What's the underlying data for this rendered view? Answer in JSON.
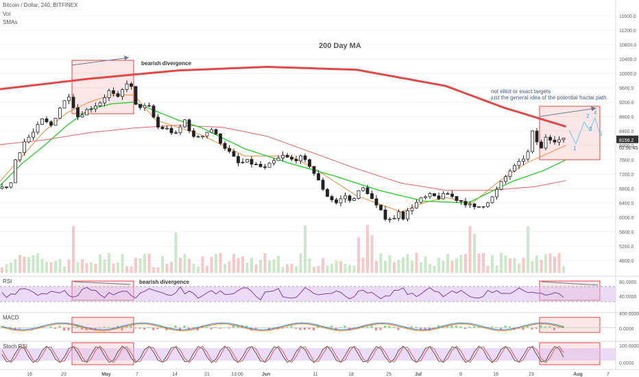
{
  "header": {
    "symbol_line": "Bitcoin / Dollar, 240, BITFINEX",
    "vol_label": "Vol",
    "smas_label": "SMAs"
  },
  "colors": {
    "up": "#ffffff",
    "down": "#222222",
    "ma200": "#e24848",
    "ma_green": "#33cc33",
    "ma_orange": "#f08c3a",
    "ma_red_thin": "#e06666",
    "rsi": "#7b3fa0",
    "stoch_k": "#555555",
    "stoch_d": "#d06060",
    "macd": "#3a7fd0",
    "signal": "#e07a20",
    "band": "#d9b8ee",
    "box_stroke": "#d44",
    "box_fill": "#f6c9c9",
    "projection": "#8fd3e8",
    "arrow": "#6a7a90"
  },
  "chart_data": {
    "type": "candlestick",
    "title": "Bitcoin / Dollar, 240, BITFINEX",
    "y_ticks": [
      "11600.0",
      "11200.0",
      "10800.0",
      "10400.0",
      "10000.0",
      "9600.0",
      "9200.0",
      "8800.0",
      "8400.0",
      "8000.0",
      "7600.0",
      "7200.0",
      "6800.0",
      "6400.0",
      "6000.0",
      "5600.0",
      "5200.0",
      "4800.0"
    ],
    "ylim": [
      4400,
      11800
    ],
    "x_ticks": [
      "16",
      "23",
      "May",
      "7",
      "14",
      "21",
      "13:00",
      "Jun",
      "11",
      "18",
      "25",
      "Jul",
      "9",
      "16",
      "23",
      "Aug",
      "7"
    ],
    "price_path": [
      [
        0,
        6800
      ],
      [
        2,
        6950
      ],
      [
        3,
        7600
      ],
      [
        5,
        8100
      ],
      [
        7,
        8350
      ],
      [
        9,
        8700
      ],
      [
        11,
        8550
      ],
      [
        13,
        9050
      ],
      [
        15,
        9400
      ],
      [
        17,
        8800
      ],
      [
        18,
        8900
      ],
      [
        20,
        9050
      ],
      [
        22,
        9200
      ],
      [
        24,
        9500
      ],
      [
        26,
        9300
      ],
      [
        28,
        9750
      ],
      [
        29,
        9600
      ],
      [
        30,
        9100
      ],
      [
        33,
        9050
      ],
      [
        35,
        8500
      ],
      [
        37,
        8450
      ],
      [
        39,
        8300
      ],
      [
        41,
        8700
      ],
      [
        43,
        8200
      ],
      [
        45,
        8300
      ],
      [
        47,
        8450
      ],
      [
        49,
        8100
      ],
      [
        51,
        7800
      ],
      [
        53,
        7500
      ],
      [
        55,
        7550
      ],
      [
        57,
        7450
      ],
      [
        59,
        7350
      ],
      [
        61,
        7550
      ],
      [
        63,
        7700
      ],
      [
        65,
        7600
      ],
      [
        67,
        7650
      ],
      [
        69,
        7450
      ],
      [
        71,
        7000
      ],
      [
        73,
        6600
      ],
      [
        75,
        6400
      ],
      [
        77,
        6600
      ],
      [
        78,
        6450
      ],
      [
        80,
        6700
      ],
      [
        81,
        6800
      ],
      [
        82,
        6700
      ],
      [
        84,
        6300
      ],
      [
        86,
        6000
      ],
      [
        88,
        5950
      ],
      [
        89,
        6200
      ],
      [
        90,
        6000
      ],
      [
        92,
        6300
      ],
      [
        94,
        6500
      ],
      [
        96,
        6600
      ],
      [
        98,
        6550
      ],
      [
        100,
        6650
      ],
      [
        102,
        6500
      ],
      [
        104,
        6400
      ],
      [
        106,
        6250
      ],
      [
        108,
        6350
      ],
      [
        110,
        6550
      ],
      [
        112,
        6950
      ],
      [
        114,
        7300
      ],
      [
        116,
        7500
      ],
      [
        118,
        7800
      ],
      [
        119,
        8350
      ],
      [
        120,
        8100
      ],
      [
        121,
        7900
      ],
      [
        122,
        8250
      ],
      [
        124,
        8150
      ],
      [
        126,
        8150
      ]
    ],
    "ma200_path": [
      [
        0,
        9560
      ],
      [
        20,
        9850
      ],
      [
        40,
        10080
      ],
      [
        60,
        10180
      ],
      [
        80,
        10100
      ],
      [
        100,
        9650
      ],
      [
        113,
        9050
      ],
      [
        127,
        8520
      ]
    ],
    "ma_green_path": [
      [
        0,
        6880
      ],
      [
        5,
        7500
      ],
      [
        10,
        8000
      ],
      [
        15,
        8550
      ],
      [
        20,
        9000
      ],
      [
        25,
        9150
      ],
      [
        30,
        9200
      ],
      [
        35,
        8950
      ],
      [
        40,
        8700
      ],
      [
        45,
        8500
      ],
      [
        55,
        7900
      ],
      [
        65,
        7500
      ],
      [
        75,
        7150
      ],
      [
        85,
        6750
      ],
      [
        95,
        6450
      ],
      [
        105,
        6400
      ],
      [
        115,
        7000
      ],
      [
        122,
        7300
      ],
      [
        127,
        7600
      ]
    ],
    "ma_orange_path": [
      [
        0,
        7000
      ],
      [
        5,
        7700
      ],
      [
        10,
        8400
      ],
      [
        15,
        8900
      ],
      [
        20,
        9200
      ],
      [
        25,
        9400
      ],
      [
        30,
        9400
      ],
      [
        35,
        8700
      ],
      [
        45,
        8300
      ],
      [
        55,
        7700
      ],
      [
        65,
        7700
      ],
      [
        70,
        7400
      ],
      [
        80,
        6600
      ],
      [
        90,
        6150
      ],
      [
        95,
        6400
      ],
      [
        100,
        6550
      ],
      [
        106,
        6400
      ],
      [
        112,
        7000
      ],
      [
        118,
        7500
      ],
      [
        127,
        8000
      ]
    ],
    "ma_red_thin_path": [
      [
        0,
        8020
      ],
      [
        10,
        8150
      ],
      [
        20,
        8350
      ],
      [
        30,
        8480
      ],
      [
        40,
        8560
      ],
      [
        50,
        8500
      ],
      [
        60,
        8250
      ],
      [
        70,
        7800
      ],
      [
        80,
        7350
      ],
      [
        90,
        6950
      ],
      [
        100,
        6750
      ],
      [
        110,
        6750
      ],
      [
        120,
        6850
      ],
      [
        127,
        7020
      ]
    ],
    "current_price": "8156.2",
    "countdown": "02:50:45",
    "annotations": {
      "ma200_label": "200 Day MA",
      "divergence_price": "bearish divergence",
      "divergence_rsi": "bearish divergence",
      "note_line1": "not elliot or exact targets",
      "note_line2": "just the general idea of the potential fractal path",
      "wave_labels": [
        "1",
        "2",
        "3",
        "4",
        "5"
      ]
    },
    "rsi": {
      "label": "RSI",
      "ticks": [
        "80.0000",
        "40.0000"
      ],
      "upper": 70,
      "lower": 30
    },
    "macd": {
      "label": "MACD",
      "ticks": [
        "400.0000",
        "0.0000"
      ]
    },
    "stoch_rsi": {
      "label": "Stoch RSI",
      "ticks": [
        "100.0000",
        "0.0000"
      ]
    }
  }
}
